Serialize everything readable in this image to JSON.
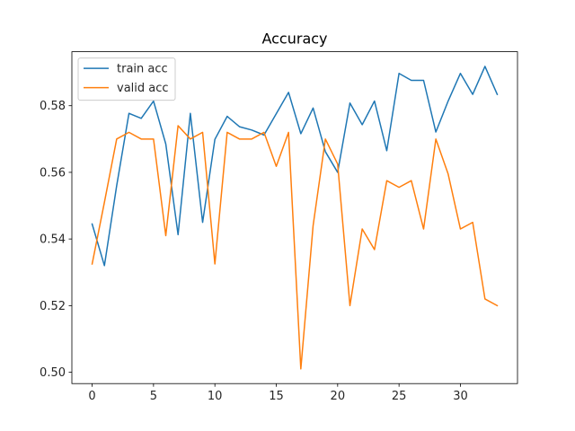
{
  "chart_data": {
    "type": "line",
    "title": "Accuracy",
    "xlabel": "",
    "ylabel": "",
    "xlim": [
      -1.65,
      34.65
    ],
    "ylim": [
      0.4966,
      0.5962
    ],
    "xticks": [
      0,
      5,
      10,
      15,
      20,
      25,
      30
    ],
    "yticks": [
      0.5,
      0.52,
      0.54,
      0.56,
      0.58
    ],
    "ytick_labels": [
      "0.50",
      "0.52",
      "0.54",
      "0.56",
      "0.58"
    ],
    "grid": false,
    "legend_position": "upper-left",
    "x": [
      0,
      1,
      2,
      3,
      4,
      5,
      6,
      7,
      8,
      9,
      10,
      11,
      12,
      13,
      14,
      15,
      16,
      17,
      18,
      19,
      20,
      21,
      22,
      23,
      24,
      25,
      26,
      27,
      28,
      29,
      30,
      31,
      32,
      33
    ],
    "series": [
      {
        "name": "train acc",
        "color": "#1f77b4",
        "values": [
          0.5445,
          0.532,
          0.556,
          0.5777,
          0.5762,
          0.5814,
          0.5685,
          0.5413,
          0.5777,
          0.545,
          0.5699,
          0.5768,
          0.5737,
          0.5727,
          0.5712,
          0.5776,
          0.584,
          0.5716,
          0.5793,
          0.5662,
          0.56,
          0.5808,
          0.5743,
          0.5814,
          0.5665,
          0.5897,
          0.5876,
          0.5876,
          0.5721,
          0.5814,
          0.5897,
          0.5834,
          0.5918,
          0.5834
        ]
      },
      {
        "name": "valid acc",
        "color": "#ff7f0e",
        "values": [
          0.5325,
          0.551,
          0.57,
          0.572,
          0.57,
          0.57,
          0.541,
          0.574,
          0.57,
          0.572,
          0.5325,
          0.572,
          0.57,
          0.57,
          0.572,
          0.5618,
          0.572,
          0.501,
          0.544,
          0.57,
          0.5625,
          0.52,
          0.543,
          0.5368,
          0.5575,
          0.5555,
          0.5575,
          0.543,
          0.57,
          0.5595,
          0.543,
          0.545,
          0.522,
          0.52
        ]
      }
    ]
  }
}
